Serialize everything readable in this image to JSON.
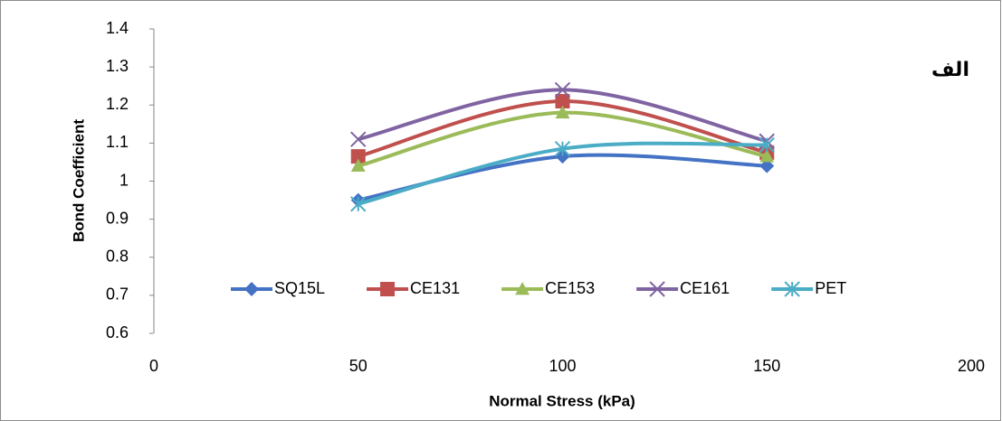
{
  "chart_data": {
    "type": "line",
    "annotation": "الف",
    "x_label": "Normal Stress (kPa)",
    "y_label": "Bond Coefficient",
    "x": [
      50,
      100,
      150
    ],
    "series": [
      {
        "name": "SQ15L",
        "color": "#4472c4",
        "marker": "diamond",
        "values": [
          0.95,
          1.065,
          1.04
        ]
      },
      {
        "name": "CE131",
        "color": "#c0504d",
        "marker": "square",
        "values": [
          1.065,
          1.21,
          1.075
        ]
      },
      {
        "name": "CE153",
        "color": "#9bbb59",
        "marker": "triangle",
        "values": [
          1.04,
          1.18,
          1.065
        ]
      },
      {
        "name": "CE161",
        "color": "#8064a2",
        "marker": "x",
        "values": [
          1.11,
          1.24,
          1.105
        ]
      },
      {
        "name": "PET",
        "color": "#4bacc6",
        "marker": "star",
        "values": [
          0.94,
          1.085,
          1.095
        ]
      }
    ],
    "xlim": [
      0,
      200
    ],
    "xticks": [
      0,
      50,
      100,
      150,
      200
    ],
    "ylim": [
      0.6,
      1.4
    ],
    "yticks": [
      0.6,
      0.7,
      0.8,
      0.9,
      1,
      1.1,
      1.2,
      1.3,
      1.4
    ],
    "smooth": true,
    "grid": false,
    "legend": "inside-bottom"
  }
}
